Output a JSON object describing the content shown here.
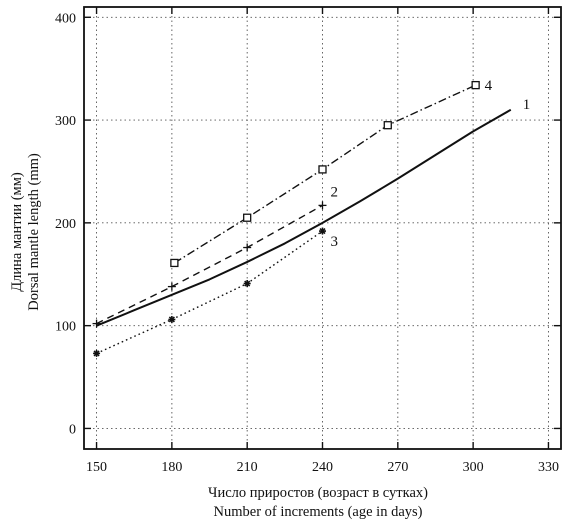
{
  "chart_data": {
    "type": "line",
    "xlabel_ru": "Число приростов (возраст в сутках)",
    "xlabel_en": "Number of increments (age in days)",
    "ylabel_ru": "Длина мантии (мм)",
    "ylabel_en": "Dorsal mantle length (mm)",
    "xlim": [
      145,
      335
    ],
    "ylim": [
      -20,
      410
    ],
    "x_ticks": [
      "150",
      "180",
      "210",
      "240",
      "270",
      "300",
      "330"
    ],
    "y_ticks": [
      "0",
      "100",
      "200",
      "300",
      "400"
    ],
    "grid": true,
    "series": [
      {
        "name": "1",
        "style": "solid",
        "marker": "none",
        "x": [
          150,
          165,
          180,
          195,
          210,
          225,
          240,
          255,
          270,
          285,
          300,
          315
        ],
        "y": [
          100,
          115,
          130,
          145,
          162,
          180,
          200,
          221,
          243,
          266,
          289,
          310
        ]
      },
      {
        "name": "2",
        "style": "dashed",
        "marker": "plus",
        "x": [
          150,
          180,
          210,
          240
        ],
        "y": [
          102,
          138,
          176,
          217
        ]
      },
      {
        "name": "3",
        "style": "dotted",
        "marker": "asterisk",
        "x": [
          150,
          180,
          210,
          240
        ],
        "y": [
          73,
          106,
          141,
          192
        ]
      },
      {
        "name": "4",
        "style": "dashdot",
        "marker": "square",
        "x": [
          181,
          210,
          240,
          266,
          301
        ],
        "y": [
          161,
          205,
          252,
          295,
          334
        ]
      }
    ]
  }
}
